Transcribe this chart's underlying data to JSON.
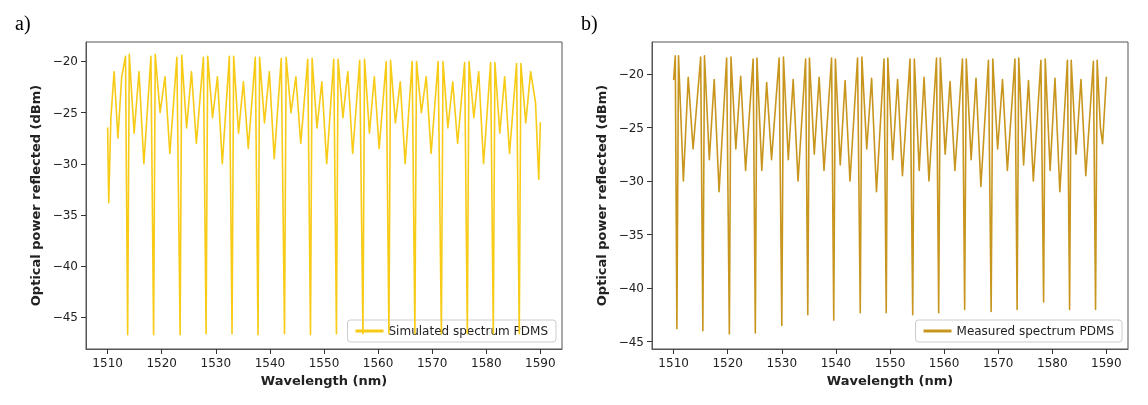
{
  "chart_data": [
    {
      "type": "line",
      "title": "a)",
      "xlabel": "Wavelength (nm)",
      "ylabel": "Optical power reflected (dBm)",
      "xlim": [
        1506,
        1594
      ],
      "xticks": [
        1510,
        1520,
        1530,
        1540,
        1550,
        1560,
        1570,
        1580,
        1590
      ],
      "ylim": [
        -48.1,
        -18.1
      ],
      "yticks": [
        -45,
        -40,
        -35,
        -30,
        -25,
        -20
      ],
      "grid": false,
      "legend": "bottom right",
      "marker": "none",
      "line_style": "solid",
      "series": [
        {
          "name": "Simulated spectrum PDMS",
          "color": "#f7cb16",
          "x": [
            1510.0,
            1510.2,
            1510.6,
            1511.2,
            1511.9,
            1512.6,
            1513.3,
            1513.7,
            1514.0,
            1514.9,
            1515.8,
            1516.7,
            1518.0,
            1518.5,
            1518.8,
            1519.7,
            1520.6,
            1521.5,
            1522.8,
            1523.4,
            1523.7,
            1524.6,
            1525.5,
            1526.4,
            1527.7,
            1528.2,
            1528.5,
            1529.4,
            1530.3,
            1531.2,
            1532.5,
            1533.0,
            1533.3,
            1534.2,
            1535.1,
            1536.0,
            1537.3,
            1537.8,
            1538.1,
            1539.0,
            1539.9,
            1540.8,
            1542.1,
            1542.7,
            1543.0,
            1543.9,
            1544.8,
            1545.7,
            1547.0,
            1547.5,
            1547.8,
            1548.7,
            1549.6,
            1550.5,
            1551.8,
            1552.3,
            1552.6,
            1553.5,
            1554.4,
            1555.3,
            1556.6,
            1557.2,
            1557.5,
            1558.4,
            1559.3,
            1560.2,
            1561.5,
            1562.0,
            1562.3,
            1563.2,
            1564.1,
            1565.0,
            1566.3,
            1566.8,
            1567.1,
            1568.0,
            1568.9,
            1569.8,
            1571.1,
            1571.7,
            1572.0,
            1572.9,
            1573.8,
            1574.7,
            1576.0,
            1576.5,
            1576.8,
            1577.7,
            1578.6,
            1579.5,
            1580.8,
            1581.3,
            1581.6,
            1582.5,
            1583.4,
            1584.3,
            1585.6,
            1586.1,
            1586.4,
            1587.3,
            1588.2,
            1589.1,
            1589.7,
            1590.0
          ],
          "values": [
            -26.5,
            -33.8,
            -25.5,
            -21,
            -27.5,
            -21.5,
            -19.5,
            -46.7,
            -19.3,
            -27,
            -21,
            -30,
            -19.5,
            -46.7,
            -19.3,
            -25,
            -21.5,
            -29,
            -19.6,
            -46.7,
            -19.4,
            -26.5,
            -21,
            -28,
            -19.6,
            -46.6,
            -19.5,
            -25.5,
            -21.5,
            -30,
            -19.5,
            -46.6,
            -19.5,
            -27,
            -22,
            -28.5,
            -19.6,
            -46.7,
            -19.6,
            -26,
            -21,
            -29.5,
            -19.7,
            -46.6,
            -19.6,
            -25,
            -21.5,
            -28,
            -19.8,
            -46.7,
            -19.7,
            -26.5,
            -22,
            -30,
            -19.8,
            -46.6,
            -19.8,
            -25.5,
            -21,
            -29,
            -19.9,
            -46.6,
            -19.8,
            -27,
            -21.5,
            -28.5,
            -20,
            -46.6,
            -19.9,
            -26,
            -22,
            -30,
            -20,
            -46.6,
            -20,
            -25,
            -21.5,
            -29,
            -20,
            -46.6,
            -20,
            -26.5,
            -22,
            -28,
            -20.1,
            -46.6,
            -20,
            -25.5,
            -21,
            -30,
            -20.1,
            -46.6,
            -20.1,
            -27,
            -21.5,
            -29,
            -20.2,
            -46.6,
            -20.2,
            -26,
            -21,
            -24,
            -31.5,
            -26
          ]
        }
      ]
    },
    {
      "type": "line",
      "title": "b)",
      "xlabel": "Wavelength (nm)",
      "ylabel": "Optical power reflected (dBm)",
      "xlim": [
        1506,
        1594
      ],
      "xticks": [
        1510,
        1520,
        1530,
        1540,
        1550,
        1560,
        1570,
        1580,
        1590
      ],
      "ylim": [
        -45.7,
        -17.0
      ],
      "yticks": [
        -45,
        -40,
        -35,
        -30,
        -25,
        -20
      ],
      "grid": false,
      "legend": "bottom right",
      "marker": "none",
      "line_style": "solid",
      "series": [
        {
          "name": "Measured spectrum PDMS",
          "color": "#c8961e",
          "x": [
            1510.0,
            1510.3,
            1510.6,
            1510.9,
            1511.8,
            1512.7,
            1513.6,
            1515.0,
            1515.4,
            1515.7,
            1516.6,
            1517.5,
            1518.4,
            1519.8,
            1520.3,
            1520.6,
            1521.5,
            1522.4,
            1523.3,
            1524.7,
            1525.1,
            1525.4,
            1526.3,
            1527.2,
            1528.1,
            1529.5,
            1530.0,
            1530.3,
            1531.2,
            1532.1,
            1533.0,
            1534.4,
            1534.8,
            1535.1,
            1536.0,
            1536.9,
            1537.8,
            1539.2,
            1539.6,
            1539.9,
            1540.8,
            1541.7,
            1542.6,
            1544.0,
            1544.5,
            1544.8,
            1545.7,
            1546.6,
            1547.5,
            1548.9,
            1549.3,
            1549.6,
            1550.5,
            1551.4,
            1552.3,
            1553.7,
            1554.2,
            1554.5,
            1555.4,
            1556.3,
            1557.2,
            1558.6,
            1559.0,
            1559.3,
            1560.2,
            1561.1,
            1562.0,
            1563.4,
            1563.8,
            1564.1,
            1565.0,
            1565.9,
            1566.8,
            1568.2,
            1568.7,
            1569.0,
            1569.9,
            1570.8,
            1571.7,
            1573.1,
            1573.5,
            1573.8,
            1574.7,
            1575.6,
            1576.5,
            1577.9,
            1578.4,
            1578.7,
            1579.6,
            1580.5,
            1581.4,
            1582.8,
            1583.2,
            1583.5,
            1584.4,
            1585.3,
            1586.2,
            1587.6,
            1588.0,
            1588.3,
            1588.9,
            1589.3,
            1590.0
          ],
          "values": [
            -20.5,
            -18.3,
            -43.8,
            -18.3,
            -30,
            -20.3,
            -27,
            -18.4,
            -44,
            -18.3,
            -28,
            -20.5,
            -31,
            -18.5,
            -44.3,
            -18.4,
            -27,
            -20.2,
            -29,
            -18.6,
            -44.2,
            -18.5,
            -29,
            -20.8,
            -28,
            -18.5,
            -43.5,
            -18.4,
            -28,
            -20.5,
            -30,
            -18.6,
            -42.5,
            -18.5,
            -27.5,
            -20.3,
            -29,
            -18.5,
            -43,
            -18.6,
            -28.5,
            -20.6,
            -30,
            -18.5,
            -42.3,
            -18.4,
            -27,
            -20.4,
            -31,
            -18.6,
            -42.3,
            -18.5,
            -28,
            -20.5,
            -29.5,
            -18.6,
            -42.5,
            -18.6,
            -29,
            -20.3,
            -30,
            -18.5,
            -42.3,
            -18.5,
            -27.5,
            -20.7,
            -29,
            -18.6,
            -42,
            -18.6,
            -28,
            -20.4,
            -30.5,
            -18.7,
            -42.2,
            -18.6,
            -27,
            -20.5,
            -29,
            -18.6,
            -42,
            -18.5,
            -28.5,
            -20.6,
            -30,
            -18.7,
            -41.3,
            -18.6,
            -29,
            -20.4,
            -31,
            -18.7,
            -42,
            -18.7,
            -27.5,
            -20.5,
            -29.5,
            -18.8,
            -42,
            -18.7,
            -25,
            -26.5,
            -20.3
          ]
        }
      ]
    }
  ]
}
